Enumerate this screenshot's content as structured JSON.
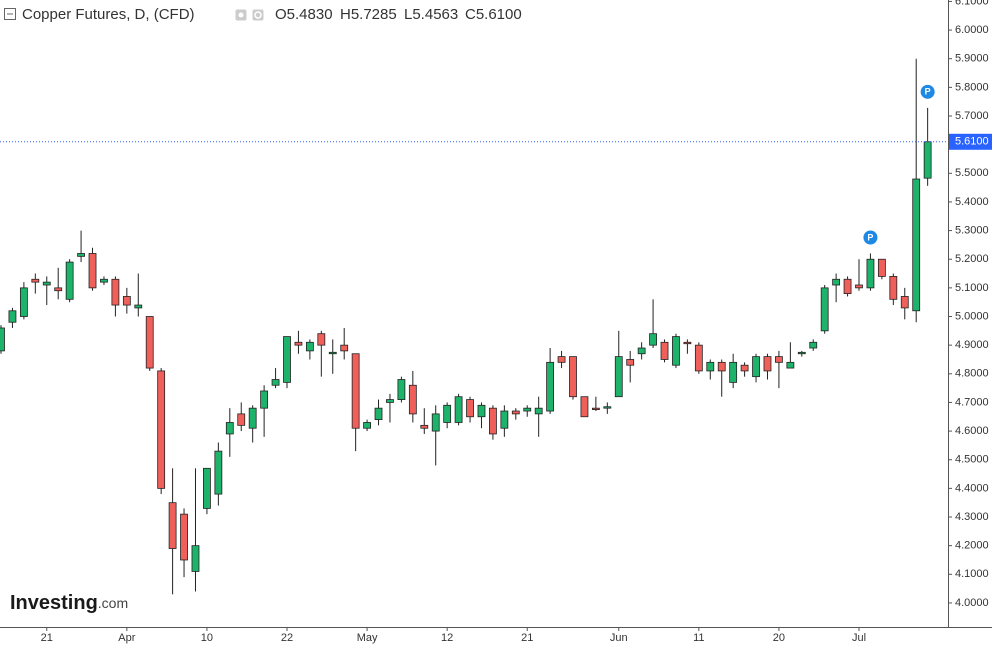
{
  "header": {
    "symbol": "Copper Futures, D, (CFD)",
    "ohlc": [
      "O5.4830",
      "H5.7285",
      "L5.4563",
      "C5.6100"
    ]
  },
  "watermark": [
    "Investing",
    ".com"
  ],
  "chart_data": {
    "type": "candlestick",
    "up_color": "#1db36a",
    "down_color": "#f0605b",
    "categories": [
      null,
      null,
      null,
      null,
      "21",
      null,
      null,
      null,
      null,
      null,
      null,
      "Apr",
      null,
      null,
      null,
      null,
      null,
      null,
      "10",
      null,
      null,
      null,
      null,
      null,
      null,
      "22",
      null,
      null,
      null,
      null,
      null,
      null,
      "May",
      null,
      null,
      null,
      null,
      null,
      null,
      "12",
      null,
      null,
      null,
      null,
      null,
      null,
      "21",
      null,
      null,
      null,
      null,
      null,
      null,
      null,
      "Jun",
      null,
      null,
      null,
      null,
      null,
      null,
      "11",
      null,
      null,
      null,
      null,
      null,
      null,
      "20",
      null,
      null,
      null,
      null,
      null,
      null,
      "Jul",
      null,
      null,
      null,
      null,
      null,
      null
    ],
    "open": [
      4.88,
      4.98,
      5.0,
      5.13,
      5.11,
      5.1,
      5.06,
      5.21,
      5.22,
      5.12,
      5.13,
      5.07,
      5.03,
      5.0,
      4.81,
      4.35,
      4.31,
      4.11,
      4.33,
      4.38,
      4.59,
      4.66,
      4.61,
      4.68,
      4.76,
      4.77,
      4.91,
      4.88,
      4.94,
      4.87,
      4.9,
      4.87,
      4.61,
      4.64,
      4.7,
      4.71,
      4.76,
      4.62,
      4.6,
      4.63,
      4.63,
      4.71,
      4.65,
      4.68,
      4.61,
      4.67,
      4.67,
      4.66,
      4.67,
      4.86,
      4.86,
      4.72,
      4.68,
      4.68,
      4.72,
      4.85,
      4.87,
      4.9,
      4.91,
      4.83,
      4.91,
      4.9,
      4.81,
      4.84,
      4.77,
      4.83,
      4.79,
      4.86,
      4.86,
      4.82,
      4.87,
      4.89,
      4.95,
      5.11,
      5.13,
      5.11,
      5.1,
      5.2,
      5.14,
      5.07,
      5.02,
      5.483
    ],
    "high": [
      4.97,
      5.03,
      5.12,
      5.15,
      5.14,
      5.17,
      5.2,
      5.3,
      5.24,
      5.14,
      5.14,
      5.1,
      5.15,
      5.0,
      4.82,
      4.47,
      4.33,
      4.47,
      4.47,
      4.56,
      4.68,
      4.7,
      4.69,
      4.76,
      4.82,
      4.93,
      4.95,
      4.92,
      4.95,
      4.92,
      4.96,
      4.87,
      4.64,
      4.71,
      4.73,
      4.79,
      4.81,
      4.68,
      4.69,
      4.7,
      4.73,
      4.72,
      4.7,
      4.69,
      4.69,
      4.68,
      4.69,
      4.72,
      4.89,
      4.88,
      4.86,
      4.72,
      4.72,
      4.7,
      4.95,
      4.88,
      4.91,
      5.06,
      4.92,
      4.94,
      4.92,
      4.91,
      4.85,
      4.85,
      4.87,
      4.84,
      4.87,
      4.87,
      4.88,
      4.91,
      4.88,
      4.92,
      5.11,
      5.15,
      5.14,
      5.2,
      5.22,
      5.2,
      5.15,
      5.1,
      5.9,
      5.7285
    ],
    "low": [
      4.87,
      4.96,
      4.99,
      5.08,
      5.04,
      5.06,
      5.05,
      5.19,
      5.09,
      5.11,
      5.0,
      5.01,
      5.0,
      4.81,
      4.38,
      4.03,
      4.09,
      4.04,
      4.31,
      4.34,
      4.51,
      4.6,
      4.56,
      4.58,
      4.75,
      4.75,
      4.87,
      4.85,
      4.79,
      4.8,
      4.85,
      4.53,
      4.6,
      4.62,
      4.63,
      4.7,
      4.63,
      4.59,
      4.48,
      4.61,
      4.62,
      4.63,
      4.61,
      4.57,
      4.58,
      4.64,
      4.65,
      4.58,
      4.66,
      4.82,
      4.71,
      4.65,
      4.67,
      4.66,
      4.72,
      4.77,
      4.85,
      4.89,
      4.84,
      4.82,
      4.87,
      4.8,
      4.78,
      4.72,
      4.75,
      4.79,
      4.77,
      4.78,
      4.75,
      4.82,
      4.86,
      4.88,
      4.94,
      5.05,
      5.07,
      5.09,
      5.09,
      5.13,
      5.04,
      4.99,
      4.98,
      5.4563
    ],
    "close": [
      4.96,
      5.02,
      5.1,
      5.12,
      5.12,
      5.09,
      5.19,
      5.22,
      5.1,
      5.13,
      5.04,
      5.04,
      5.04,
      4.82,
      4.4,
      4.19,
      4.15,
      4.2,
      4.47,
      4.53,
      4.63,
      4.62,
      4.68,
      4.74,
      4.78,
      4.93,
      4.9,
      4.91,
      4.9,
      4.875,
      4.88,
      4.61,
      4.63,
      4.68,
      4.71,
      4.78,
      4.66,
      4.61,
      4.66,
      4.69,
      4.72,
      4.65,
      4.69,
      4.59,
      4.67,
      4.66,
      4.68,
      4.68,
      4.84,
      4.84,
      4.72,
      4.65,
      4.675,
      4.685,
      4.86,
      4.83,
      4.89,
      4.94,
      4.85,
      4.93,
      4.905,
      4.81,
      4.84,
      4.81,
      4.84,
      4.81,
      4.86,
      4.81,
      4.84,
      4.84,
      4.875,
      4.91,
      5.1,
      5.13,
      5.08,
      5.1,
      5.2,
      5.14,
      5.06,
      5.03,
      5.48,
      5.61
    ],
    "ylim": [
      3.916,
      6.105
    ],
    "yticks": [
      {
        "value": 4.0,
        "label": "4.0000"
      },
      {
        "value": 4.1,
        "label": "4.1000"
      },
      {
        "value": 4.2,
        "label": "4.2000"
      },
      {
        "value": 4.3,
        "label": "4.3000"
      },
      {
        "value": 4.4,
        "label": "4.4000"
      },
      {
        "value": 4.5,
        "label": "4.5000"
      },
      {
        "value": 4.6,
        "label": "4.6000"
      },
      {
        "value": 4.7,
        "label": "4.7000"
      },
      {
        "value": 4.8,
        "label": "4.8000"
      },
      {
        "value": 4.9,
        "label": "4.9000"
      },
      {
        "value": 5.0,
        "label": "5.0000"
      },
      {
        "value": 5.1,
        "label": "5.1000"
      },
      {
        "value": 5.2,
        "label": "5.2000"
      },
      {
        "value": 5.3,
        "label": "5.3000"
      },
      {
        "value": 5.4,
        "label": "5.4000"
      },
      {
        "value": 5.5,
        "label": "5.5000"
      },
      {
        "value": 5.6,
        "label": "5.6000"
      },
      {
        "value": 5.7,
        "label": "5.7000"
      },
      {
        "value": 5.8,
        "label": "5.8000"
      },
      {
        "value": 5.9,
        "label": "5.9000"
      },
      {
        "value": 6.0,
        "label": "6.0000"
      },
      {
        "value": 6.1,
        "label": "6.1000"
      }
    ],
    "last_price": {
      "value": 5.61,
      "label": "5.6100",
      "color": "#2962ff"
    },
    "events": [
      {
        "at": 76,
        "label": "P"
      },
      {
        "at": 81,
        "label": "P"
      }
    ],
    "grid": false
  }
}
